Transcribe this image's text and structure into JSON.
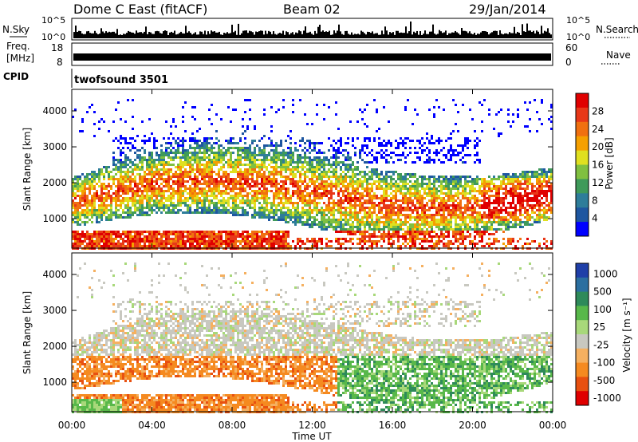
{
  "header": {
    "station": "Dome C East (fitACF)",
    "beam": "Beam 02",
    "date": "29/Jan/2014"
  },
  "panels": {
    "nsky": {
      "label": "N.Sky",
      "ticks": [
        "10^5",
        "10^0"
      ]
    },
    "nsearch": {
      "label": "N.Search",
      "ticks": [
        "10^5",
        "10^0"
      ]
    },
    "freq": {
      "label_line1": "Freq.",
      "label_line2": "[MHz]",
      "ticks": [
        "18",
        "8"
      ]
    },
    "nave": {
      "label": "Nave",
      "ticks": [
        "60",
        "0"
      ]
    },
    "cpid": {
      "label": "CPID",
      "value": "twofsound 3501"
    }
  },
  "colors": {
    "power_scale": [
      "#0000ff",
      "#1e56a0",
      "#2e7d9a",
      "#3f9a5a",
      "#80c040",
      "#e0e020",
      "#f5a000",
      "#f07010",
      "#e83818",
      "#e00000"
    ],
    "velocity_scale": [
      "#1f3fa8",
      "#2b6fa0",
      "#2e8a5a",
      "#58b84a",
      "#a8d87a",
      "#c8c8c0",
      "#f5b060",
      "#f58a20",
      "#e85010",
      "#e00000"
    ]
  },
  "chart_data": [
    {
      "type": "heatmap",
      "name": "power",
      "xlabel": "",
      "ylabel": "Slant Range [km]",
      "x_ticks": [
        "00:00",
        "04:00",
        "08:00",
        "12:00",
        "16:00",
        "20:00",
        "00:00"
      ],
      "y_ticks": [
        1000,
        2000,
        3000,
        4000
      ],
      "ylim": [
        180,
        4600
      ],
      "colorbar": {
        "label": "Power [dB]",
        "ticks": [
          4,
          8,
          12,
          16,
          20,
          24,
          28
        ],
        "range": [
          0,
          32
        ]
      }
    },
    {
      "type": "heatmap",
      "name": "velocity",
      "xlabel": "Time UT",
      "ylabel": "Slant Range [km]",
      "x_ticks": [
        "00:00",
        "04:00",
        "08:00",
        "12:00",
        "16:00",
        "20:00",
        "00:00"
      ],
      "y_ticks": [
        1000,
        2000,
        3000,
        4000
      ],
      "ylim": [
        180,
        4600
      ],
      "colorbar": {
        "label": "Velocity [m s⁻¹]",
        "ticks": [
          "1000",
          "500",
          "100",
          "25",
          "-25",
          "-100",
          "-500",
          "-1000"
        ]
      }
    }
  ]
}
